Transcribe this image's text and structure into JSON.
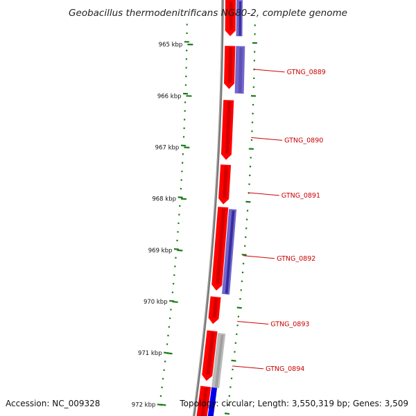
{
  "title": "Geobacillus thermodenitrificans NG80-2, complete genome",
  "footer": {
    "accession": "Accession: NC_009328",
    "summary": "Topology: circular; Length: 3,550,319 bp; Genes: 3,509"
  },
  "ruler": [
    {
      "label": "965 kbp",
      "kbp": 965
    },
    {
      "label": "966 kbp",
      "kbp": 966
    },
    {
      "label": "967 kbp",
      "kbp": 967
    },
    {
      "label": "968 kbp",
      "kbp": 968
    },
    {
      "label": "969 kbp",
      "kbp": 969
    },
    {
      "label": "970 kbp",
      "kbp": 970
    },
    {
      "label": "971 kbp",
      "kbp": 971
    },
    {
      "label": "972 kbp",
      "kbp": 972
    }
  ],
  "labeled_genes": [
    {
      "name": "GTNG_0889",
      "kbp": 965.45
    },
    {
      "name": "GTNG_0890",
      "kbp": 966.75
    },
    {
      "name": "GTNG_0891",
      "kbp": 967.8
    },
    {
      "name": "GTNG_0892",
      "kbp": 969.0
    },
    {
      "name": "GTNG_0893",
      "kbp": 970.25
    },
    {
      "name": "GTNG_0894",
      "kbp": 971.1
    }
  ],
  "colors": {
    "cds": "#ff0000",
    "cds_dark": "#b00000",
    "gene_purple": "#7366cc",
    "gene_navy": "#00007a",
    "gene_grey": "#bbbbbb",
    "gene_blue": "#0000ff",
    "backbone": "#777777",
    "tick": "#1a7a1a",
    "label": "#cc0000"
  }
}
